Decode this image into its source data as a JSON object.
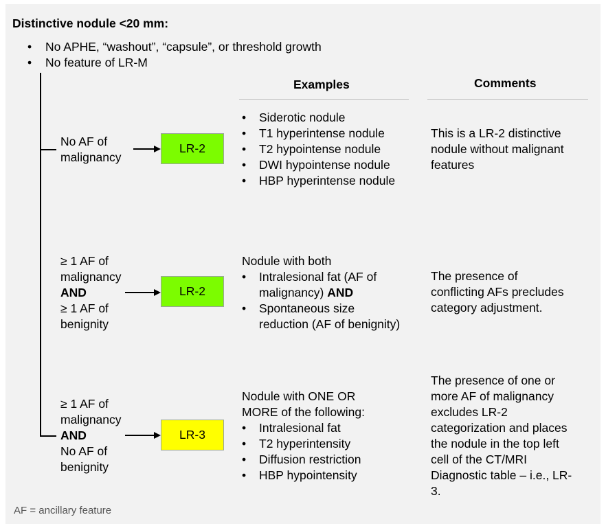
{
  "title": "Distinctive nodule <20 mm:",
  "criteria": [
    "No APHE, “washout”, “capsule”, or threshold growth",
    "No feature of LR-M"
  ],
  "headers": {
    "examples": "Examples",
    "comments": "Comments"
  },
  "rows": [
    {
      "condition_lines": [
        "No AF of",
        "malignancy"
      ],
      "category": "LR-2",
      "category_color": "#7cfc00",
      "examples": {
        "items": [
          "Siderotic nodule",
          "T1 hyperintense nodule",
          "T2 hypointense nodule",
          "DWI hypointense nodule",
          "HBP hyperintense nodule"
        ]
      },
      "comment_lines": [
        "This is a LR-2 distinctive",
        "nodule without malignant",
        "features"
      ]
    },
    {
      "condition_lines": [
        "≥ 1 AF of",
        "malignancy",
        "AND",
        "≥ 1 AF of",
        "benignity"
      ],
      "category": "LR-2",
      "category_color": "#7cfc00",
      "examples": {
        "intro": "Nodule with both",
        "item1_line1": "Intralesional fat (AF of",
        "item1_line2": "malignancy)",
        "item1_and": "AND",
        "item2_line1": "Spontaneous size",
        "item2_line2": "reduction (AF of benignity)"
      },
      "comment_lines": [
        "The presence of",
        "conflicting AFs precludes",
        "category adjustment."
      ]
    },
    {
      "condition_lines": [
        "≥ 1 AF of",
        "malignancy",
        "AND",
        "No AF of",
        "benignity"
      ],
      "category": "LR-3",
      "category_color": "#ffff00",
      "examples": {
        "intro_lines": [
          "Nodule with ONE OR",
          "MORE of the following:"
        ],
        "items": [
          "Intralesional fat",
          "T2 hyperintensity",
          "Diffusion restriction",
          "HBP hypointensity"
        ]
      },
      "comment_lines": [
        "The presence of one or",
        "more AF of malignancy",
        "excludes LR-2",
        "categorization and places",
        "the nodule in the top left",
        "cell of the CT/MRI",
        "Diagnostic table – i.e., LR-",
        "3."
      ]
    }
  ],
  "footnote": "AF = ancillary feature",
  "bullet": "•"
}
